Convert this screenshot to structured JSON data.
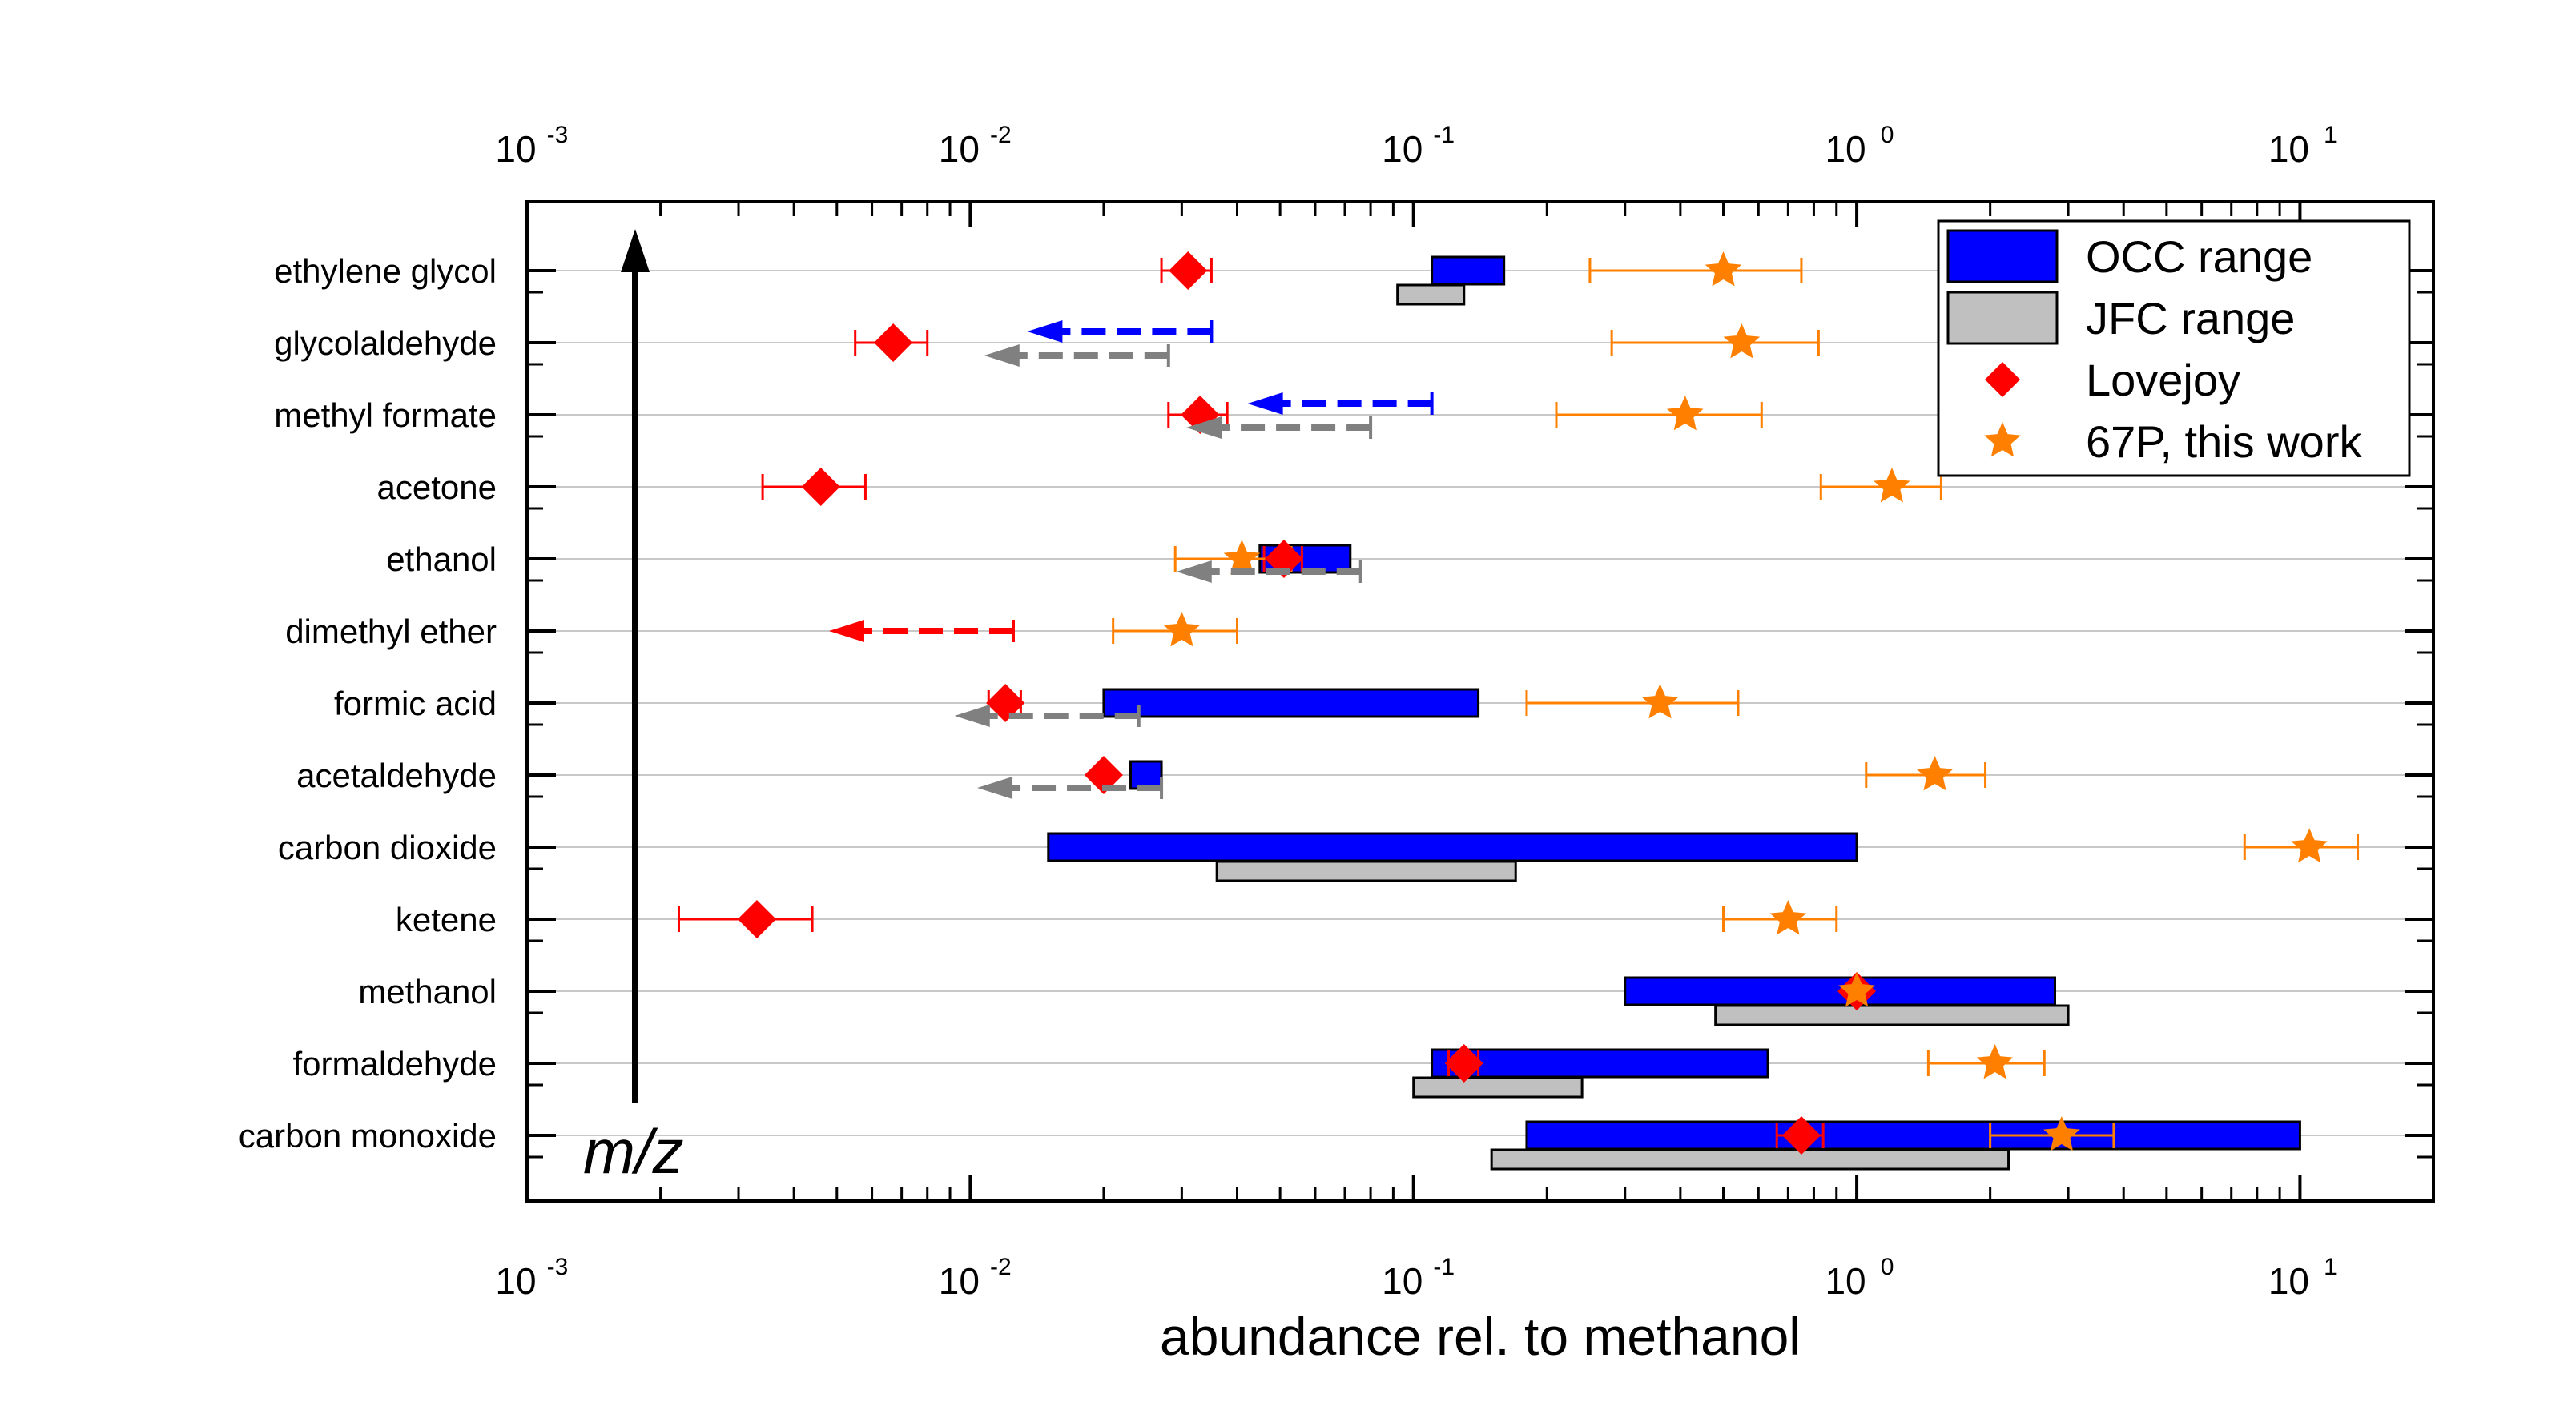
{
  "chart_data": {
    "type": "range-marker",
    "x_axis": {
      "scale": "log",
      "xlim": [
        0.001,
        20
      ],
      "xlabel": "abundance rel. to methanol",
      "major_ticks": [
        {
          "value": 0.001,
          "base": "10",
          "exp": "-3"
        },
        {
          "value": 0.01,
          "base": "10",
          "exp": "-2"
        },
        {
          "value": 0.1,
          "base": "10",
          "exp": "-1"
        },
        {
          "value": 1,
          "base": "10",
          "exp": "0"
        },
        {
          "value": 10,
          "base": "10",
          "exp": "1"
        }
      ]
    },
    "y_arrow_label": "m/z",
    "categories": [
      "ethylene glycol",
      "glycolaldehyde",
      "methyl formate",
      "acetone",
      "ethanol",
      "dimethyl ether",
      "formic acid",
      "acetaldehyde",
      "carbon dioxide",
      "ketene",
      "methanol",
      "formaldehyde",
      "carbon monoxide"
    ],
    "colors": {
      "occ": "#0000ff",
      "jfc": "#c0c0c0",
      "lovejoy": "#ff0000",
      "p67": "#ff8000",
      "arrow_occ": "#0000ff",
      "arrow_jfc": "#808080",
      "arrow_lovejoy": "#ff0000"
    },
    "series": [
      {
        "name": "OCC range",
        "kind": "range",
        "values": [
          {
            "category": "ethylene glycol",
            "low": 0.11,
            "high": 0.16
          },
          {
            "category": "ethanol",
            "low": 0.045,
            "high": 0.072
          },
          {
            "category": "formic acid",
            "low": 0.02,
            "high": 0.14
          },
          {
            "category": "acetaldehyde",
            "low": 0.023,
            "high": 0.027
          },
          {
            "category": "carbon dioxide",
            "low": 0.015,
            "high": 1.0
          },
          {
            "category": "methanol",
            "low": 0.3,
            "high": 2.8
          },
          {
            "category": "formaldehyde",
            "low": 0.11,
            "high": 0.63
          },
          {
            "category": "carbon monoxide",
            "low": 0.18,
            "high": 10.0
          }
        ],
        "upper_limits": [
          {
            "category": "glycolaldehyde",
            "value": 0.035
          },
          {
            "category": "methyl formate",
            "value": 0.11
          }
        ]
      },
      {
        "name": "JFC range",
        "kind": "range",
        "values": [
          {
            "category": "ethylene glycol",
            "low": 0.092,
            "high": 0.13
          },
          {
            "category": "carbon dioxide",
            "low": 0.036,
            "high": 0.17
          },
          {
            "category": "methanol",
            "low": 0.48,
            "high": 3.0
          },
          {
            "category": "formaldehyde",
            "low": 0.1,
            "high": 0.24
          },
          {
            "category": "carbon monoxide",
            "low": 0.15,
            "high": 2.2
          }
        ],
        "upper_limits": [
          {
            "category": "glycolaldehyde",
            "value": 0.028
          },
          {
            "category": "methyl formate",
            "value": 0.08
          },
          {
            "category": "ethanol",
            "value": 0.076
          },
          {
            "category": "formic acid",
            "value": 0.024
          },
          {
            "category": "acetaldehyde",
            "value": 0.027
          }
        ]
      },
      {
        "name": "Lovejoy",
        "kind": "point",
        "values": [
          {
            "category": "ethylene glycol",
            "value": 0.031,
            "err_low": 0.027,
            "err_high": 0.035
          },
          {
            "category": "glycolaldehyde",
            "value": 0.0067,
            "err_low": 0.0055,
            "err_high": 0.008
          },
          {
            "category": "methyl formate",
            "value": 0.033,
            "err_low": 0.028,
            "err_high": 0.038
          },
          {
            "category": "acetone",
            "value": 0.0046,
            "err_low": 0.0034,
            "err_high": 0.0058
          },
          {
            "category": "ethanol",
            "value": 0.051,
            "err_low": 0.046,
            "err_high": 0.056
          },
          {
            "category": "formic acid",
            "value": 0.012,
            "err_low": 0.011,
            "err_high": 0.013
          },
          {
            "category": "acetaldehyde",
            "value": 0.02
          },
          {
            "category": "ketene",
            "value": 0.0033,
            "err_low": 0.0022,
            "err_high": 0.0044
          },
          {
            "category": "methanol",
            "value": 1.0
          },
          {
            "category": "formaldehyde",
            "value": 0.13,
            "err_low": 0.12,
            "err_high": 0.14
          },
          {
            "category": "carbon monoxide",
            "value": 0.75,
            "err_low": 0.66,
            "err_high": 0.84
          }
        ],
        "upper_limits": [
          {
            "category": "dimethyl ether",
            "value": 0.0125
          }
        ]
      },
      {
        "name": "67P, this work",
        "kind": "point",
        "values": [
          {
            "category": "ethylene glycol",
            "value": 0.5,
            "err_low": 0.25,
            "err_high": 0.75
          },
          {
            "category": "glycolaldehyde",
            "value": 0.55,
            "err_low": 0.28,
            "err_high": 0.82
          },
          {
            "category": "methyl formate",
            "value": 0.41,
            "err_low": 0.21,
            "err_high": 0.61
          },
          {
            "category": "acetone",
            "value": 1.2,
            "err_low": 0.83,
            "err_high": 1.55
          },
          {
            "category": "ethanol",
            "value": 0.041,
            "err_low": 0.029,
            "err_high": 0.053
          },
          {
            "category": "dimethyl ether",
            "value": 0.03,
            "err_low": 0.021,
            "err_high": 0.04
          },
          {
            "category": "formic acid",
            "value": 0.36,
            "err_low": 0.18,
            "err_high": 0.54
          },
          {
            "category": "acetaldehyde",
            "value": 1.5,
            "err_low": 1.05,
            "err_high": 1.95
          },
          {
            "category": "carbon dioxide",
            "value": 10.5,
            "err_low": 7.5,
            "err_high": 13.5
          },
          {
            "category": "ketene",
            "value": 0.7,
            "err_low": 0.5,
            "err_high": 0.9
          },
          {
            "category": "methanol",
            "value": 1.0
          },
          {
            "category": "formaldehyde",
            "value": 2.05,
            "err_low": 1.45,
            "err_high": 2.65
          },
          {
            "category": "carbon monoxide",
            "value": 2.9,
            "err_low": 2.0,
            "err_high": 3.8
          }
        ]
      }
    ],
    "legend": {
      "position": "top-right",
      "entries": [
        {
          "label": "OCC range",
          "symbol": "rect",
          "color": "#0000ff"
        },
        {
          "label": "JFC range",
          "symbol": "rect",
          "color": "#c0c0c0"
        },
        {
          "label": "Lovejoy",
          "symbol": "diamond",
          "color": "#ff0000"
        },
        {
          "label": "67P, this work",
          "symbol": "star",
          "color": "#ff8000"
        }
      ]
    }
  }
}
